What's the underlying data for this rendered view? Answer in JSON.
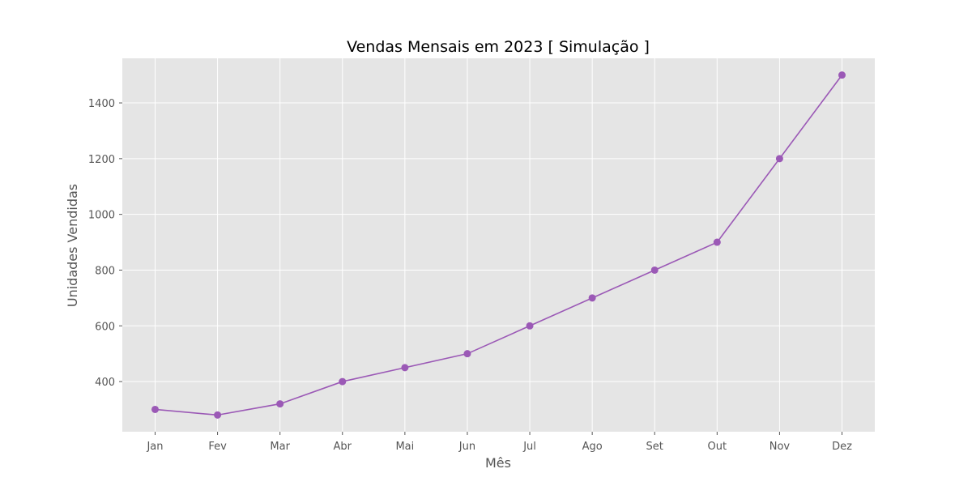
{
  "chart_data": {
    "type": "line",
    "title": "Vendas Mensais em 2023 [ Simulação ]",
    "xlabel": "Mês",
    "ylabel": "Unidades Vendidas",
    "categories": [
      "Jan",
      "Fev",
      "Mar",
      "Abr",
      "Mai",
      "Jun",
      "Jul",
      "Ago",
      "Set",
      "Out",
      "Nov",
      "Dez"
    ],
    "series": [
      {
        "values": [
          300,
          280,
          320,
          400,
          450,
          500,
          600,
          700,
          800,
          900,
          1200,
          1500
        ],
        "color": "#9b59b6"
      }
    ],
    "yticks": [
      400,
      600,
      800,
      1000,
      1200,
      1400
    ],
    "ylim": [
      220,
      1560
    ],
    "grid": true,
    "plot_background": "#e5e5e5",
    "grid_color": "#ffffff",
    "markers": true
  }
}
